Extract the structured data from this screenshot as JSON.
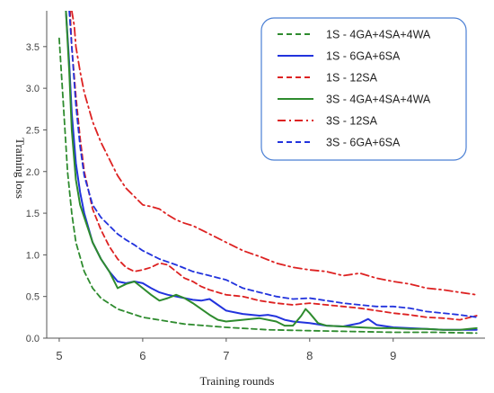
{
  "chart_data": {
    "type": "line",
    "title": "",
    "xlabel": "Training rounds",
    "ylabel": "Training loss",
    "xlim": [
      4.85,
      10.1
    ],
    "ylim": [
      0.0,
      3.93
    ],
    "xticks": [
      5,
      6,
      7,
      8,
      9
    ],
    "yticks": [
      0.0,
      0.5,
      1.0,
      1.5,
      2.0,
      2.5,
      3.0,
      3.5
    ],
    "grid": false,
    "legend_position": "top-right",
    "series": [
      {
        "name": "1S - 4GA+4SA+4WA",
        "color": "#2e8b2e",
        "style": "dashed",
        "x": [
          5.0,
          5.05,
          5.1,
          5.15,
          5.2,
          5.3,
          5.4,
          5.5,
          5.7,
          6.0,
          6.5,
          7.0,
          7.5,
          8.0,
          8.5,
          9.0,
          9.5,
          10.0
        ],
        "y": [
          3.6,
          2.8,
          2.0,
          1.5,
          1.15,
          0.8,
          0.6,
          0.48,
          0.35,
          0.25,
          0.17,
          0.13,
          0.1,
          0.09,
          0.08,
          0.07,
          0.07,
          0.06
        ]
      },
      {
        "name": "1S - 6GA+6SA",
        "color": "#2233dd",
        "style": "solid",
        "x": [
          5.08,
          5.12,
          5.15,
          5.2,
          5.25,
          5.3,
          5.4,
          5.5,
          5.6,
          5.7,
          5.8,
          5.9,
          6.0,
          6.1,
          6.2,
          6.3,
          6.4,
          6.5,
          6.6,
          6.7,
          6.8,
          6.9,
          7.0,
          7.2,
          7.4,
          7.5,
          7.6,
          7.7,
          7.8,
          7.9,
          8.0,
          8.2,
          8.4,
          8.6,
          8.7,
          8.8,
          9.0,
          9.2,
          9.4,
          9.6,
          9.8,
          10.0
        ],
        "y": [
          3.93,
          3.3,
          2.7,
          2.1,
          1.75,
          1.5,
          1.15,
          0.95,
          0.8,
          0.68,
          0.66,
          0.68,
          0.66,
          0.6,
          0.55,
          0.52,
          0.5,
          0.48,
          0.46,
          0.45,
          0.47,
          0.4,
          0.33,
          0.29,
          0.27,
          0.28,
          0.26,
          0.22,
          0.2,
          0.19,
          0.18,
          0.15,
          0.14,
          0.18,
          0.23,
          0.16,
          0.13,
          0.12,
          0.11,
          0.1,
          0.1,
          0.1
        ]
      },
      {
        "name": "1S - 12SA",
        "color": "#dd2222",
        "style": "dashed",
        "x": [
          5.13,
          5.15,
          5.2,
          5.25,
          5.3,
          5.4,
          5.5,
          5.6,
          5.7,
          5.8,
          5.9,
          6.0,
          6.1,
          6.2,
          6.3,
          6.4,
          6.5,
          6.6,
          6.7,
          6.8,
          6.9,
          7.0,
          7.2,
          7.4,
          7.6,
          7.8,
          8.0,
          8.2,
          8.4,
          8.6,
          8.8,
          9.0,
          9.2,
          9.4,
          9.6,
          9.8,
          10.0
        ],
        "y": [
          3.93,
          3.5,
          2.9,
          2.4,
          2.0,
          1.55,
          1.3,
          1.1,
          0.95,
          0.85,
          0.8,
          0.82,
          0.85,
          0.9,
          0.88,
          0.8,
          0.72,
          0.68,
          0.62,
          0.58,
          0.55,
          0.52,
          0.5,
          0.45,
          0.42,
          0.4,
          0.42,
          0.4,
          0.38,
          0.36,
          0.33,
          0.3,
          0.28,
          0.25,
          0.24,
          0.22,
          0.27
        ]
      },
      {
        "name": "3S - 4GA+4SA+4WA",
        "color": "#2e8b2e",
        "style": "solid",
        "x": [
          5.08,
          5.12,
          5.15,
          5.2,
          5.25,
          5.3,
          5.35,
          5.4,
          5.5,
          5.6,
          5.7,
          5.8,
          5.9,
          6.0,
          6.1,
          6.2,
          6.3,
          6.4,
          6.5,
          6.6,
          6.7,
          6.8,
          6.9,
          7.0,
          7.2,
          7.4,
          7.6,
          7.7,
          7.8,
          7.9,
          7.95,
          8.0,
          8.1,
          8.2,
          8.4,
          8.6,
          8.8,
          9.0,
          9.2,
          9.4,
          9.6,
          9.8,
          10.0
        ],
        "y": [
          3.93,
          3.2,
          2.5,
          1.9,
          1.6,
          1.45,
          1.3,
          1.15,
          0.95,
          0.8,
          0.6,
          0.65,
          0.68,
          0.6,
          0.52,
          0.45,
          0.48,
          0.52,
          0.48,
          0.42,
          0.35,
          0.28,
          0.22,
          0.2,
          0.22,
          0.24,
          0.2,
          0.15,
          0.15,
          0.27,
          0.35,
          0.3,
          0.18,
          0.15,
          0.14,
          0.13,
          0.12,
          0.12,
          0.11,
          0.11,
          0.1,
          0.1,
          0.12
        ]
      },
      {
        "name": "3S - 12SA",
        "color": "#dd2222",
        "style": "dashdot",
        "x": [
          5.15,
          5.18,
          5.2,
          5.25,
          5.3,
          5.4,
          5.5,
          5.6,
          5.7,
          5.8,
          5.9,
          6.0,
          6.1,
          6.2,
          6.3,
          6.4,
          6.5,
          6.6,
          6.7,
          6.8,
          7.0,
          7.2,
          7.4,
          7.6,
          7.8,
          8.0,
          8.2,
          8.4,
          8.6,
          8.8,
          9.0,
          9.2,
          9.4,
          9.6,
          9.8,
          10.0
        ],
        "y": [
          3.93,
          3.75,
          3.5,
          3.2,
          2.95,
          2.6,
          2.35,
          2.15,
          1.95,
          1.8,
          1.7,
          1.6,
          1.58,
          1.55,
          1.48,
          1.42,
          1.38,
          1.35,
          1.3,
          1.25,
          1.15,
          1.05,
          0.98,
          0.9,
          0.85,
          0.82,
          0.8,
          0.75,
          0.78,
          0.72,
          0.68,
          0.65,
          0.6,
          0.58,
          0.55,
          0.52
        ]
      },
      {
        "name": "3S - 6GA+6SA",
        "color": "#2233dd",
        "style": "dashed",
        "x": [
          5.12,
          5.15,
          5.2,
          5.25,
          5.3,
          5.4,
          5.5,
          5.6,
          5.7,
          5.8,
          5.9,
          6.0,
          6.2,
          6.4,
          6.6,
          6.8,
          7.0,
          7.2,
          7.4,
          7.6,
          7.8,
          8.0,
          8.2,
          8.4,
          8.6,
          8.8,
          9.0,
          9.2,
          9.4,
          9.6,
          9.8,
          10.0
        ],
        "y": [
          3.93,
          3.5,
          2.8,
          2.3,
          1.95,
          1.6,
          1.45,
          1.35,
          1.25,
          1.18,
          1.12,
          1.05,
          0.95,
          0.88,
          0.8,
          0.75,
          0.7,
          0.6,
          0.55,
          0.5,
          0.47,
          0.48,
          0.45,
          0.42,
          0.4,
          0.38,
          0.38,
          0.36,
          0.32,
          0.3,
          0.28,
          0.25
        ]
      }
    ]
  }
}
